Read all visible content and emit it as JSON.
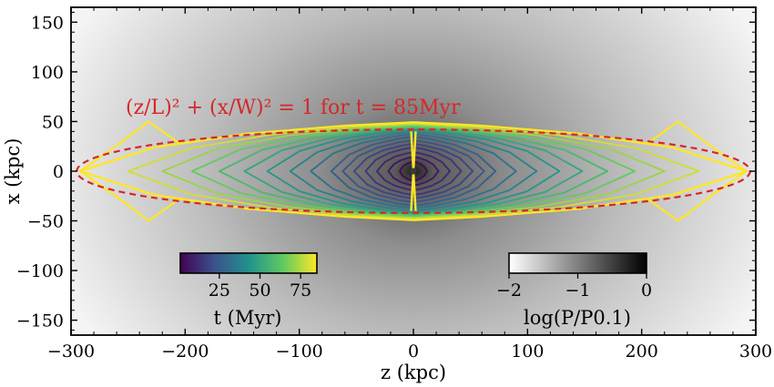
{
  "chart_data": {
    "type": "contour",
    "xlabel": "z (kpc)",
    "ylabel": "x (kpc)",
    "xlim": [
      -300,
      300
    ],
    "ylim": [
      -165,
      165
    ],
    "xticks": [
      -300,
      -200,
      -100,
      0,
      100,
      200,
      300
    ],
    "xtick_labels": [
      "−300",
      "−200",
      "−100",
      "0",
      "100",
      "200",
      "300"
    ],
    "yticks": [
      -150,
      -100,
      -50,
      0,
      50,
      100,
      150
    ],
    "ytick_labels": [
      "−150",
      "−100",
      "−50",
      "0",
      "50",
      "100",
      "150"
    ],
    "annotation": {
      "text": "(z/L)² + (x/W)² = 1 for t = 85Myr",
      "color": "#d62728"
    },
    "ellipse": {
      "L": 295,
      "W": 42,
      "t_myr": 85,
      "color": "#d62728",
      "style": "dashed"
    },
    "background": {
      "quantity": "log(P/P0.1)",
      "range": [
        -2,
        0
      ],
      "colormap": "gray_r"
    },
    "contours": {
      "quantity": "t (Myr)",
      "colormap": "viridis",
      "cmap_range": [
        1,
        85
      ],
      "times": [
        3,
        7,
        11,
        15,
        19,
        23,
        27,
        33,
        39,
        45,
        51,
        58,
        65,
        72,
        79,
        85
      ],
      "half_lengths": [
        12,
        22,
        32,
        42,
        52,
        62,
        72,
        90,
        108,
        128,
        148,
        170,
        194,
        220,
        250,
        292
      ],
      "half_widths": [
        8,
        12,
        16,
        20,
        23,
        26,
        29,
        31,
        33,
        35,
        36,
        37,
        38,
        39,
        40,
        41
      ]
    },
    "colorbars": [
      {
        "name": "time",
        "label": "t (Myr)",
        "ticks": [
          "25",
          "50",
          "75"
        ],
        "tick_values": [
          25,
          50,
          75
        ],
        "range": [
          1,
          85
        ]
      },
      {
        "name": "pressure",
        "label": "log(P/P0.1)",
        "ticks": [
          "−2",
          "−1",
          "0"
        ],
        "tick_values": [
          -2,
          -1,
          0
        ],
        "range": [
          -2,
          0
        ]
      }
    ]
  }
}
